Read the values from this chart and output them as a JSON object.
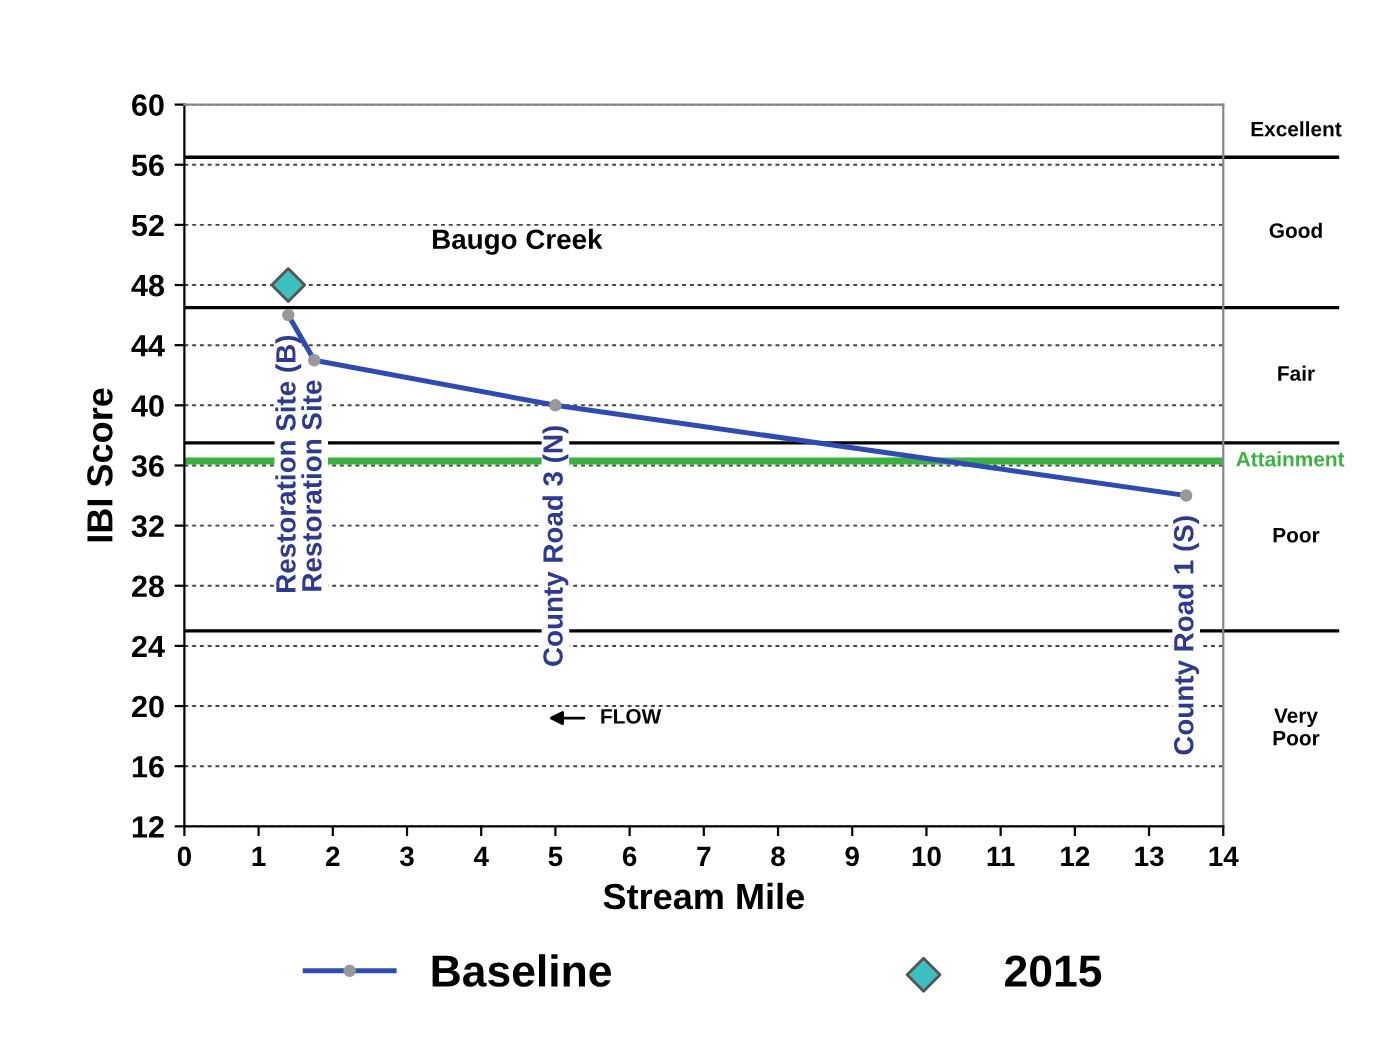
{
  "chart_data": {
    "type": "line",
    "title": "Baugo Creek",
    "xlabel": "Stream Mile",
    "ylabel": "IBI Score",
    "xlim": [
      0,
      14
    ],
    "xticks": [
      0,
      1,
      2,
      3,
      4,
      5,
      6,
      7,
      8,
      9,
      10,
      11,
      12,
      13,
      14
    ],
    "ylim": [
      12,
      60
    ],
    "yticks": [
      12,
      16,
      20,
      24,
      28,
      32,
      36,
      40,
      44,
      48,
      52,
      56,
      60
    ],
    "grid": "y",
    "legend": "bottom",
    "series": [
      {
        "name": "Baseline",
        "color": "#2e4bb0",
        "marker": "circle",
        "x": [
          1.4,
          1.75,
          5,
          13.5
        ],
        "values": [
          46,
          43,
          40,
          34
        ]
      },
      {
        "name": "2015",
        "type": "scatter",
        "color": "#3cbfbf",
        "marker": "diamond",
        "x": [
          1.4
        ],
        "values": [
          48
        ]
      }
    ],
    "ref_lines": [
      {
        "axis": "y",
        "value": 56.5,
        "label": null,
        "color": "#000000"
      },
      {
        "axis": "y",
        "value": 46.5,
        "label": null,
        "color": "#000000"
      },
      {
        "axis": "y",
        "value": 37.5,
        "label": null,
        "color": "#000000"
      },
      {
        "axis": "y",
        "value": 25,
        "label": null,
        "color": "#000000"
      },
      {
        "axis": "y",
        "value": 36.3,
        "label": "Attainment",
        "color": "#3cb043"
      }
    ],
    "annotations": [
      "Restoration Site (B)",
      "Restoration Site",
      "County Road 3 (N)",
      "County Road 1 (S)",
      "FLOW",
      "Excellent",
      "Good",
      "Fair",
      "Poor",
      "Very\nPoor"
    ]
  }
}
